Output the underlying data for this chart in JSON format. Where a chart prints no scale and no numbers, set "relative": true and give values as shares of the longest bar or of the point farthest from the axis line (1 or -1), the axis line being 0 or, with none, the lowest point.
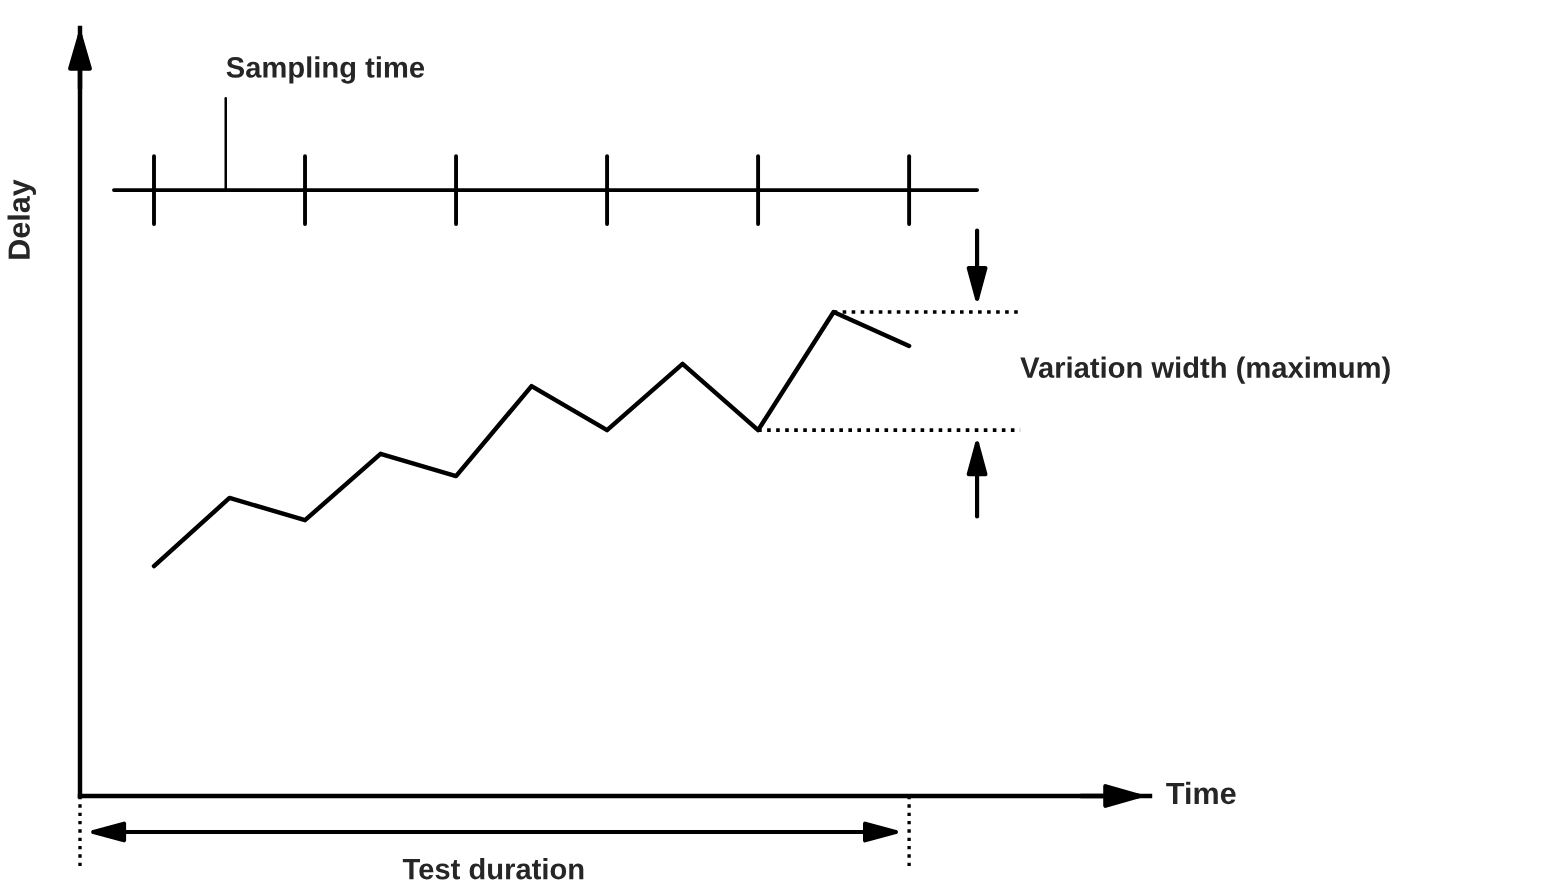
{
  "chart_data": {
    "type": "line",
    "relative": true,
    "ylabel": "Delay",
    "categories": [
      null,
      null,
      null,
      null,
      null,
      null,
      null,
      null,
      null,
      null,
      null
    ],
    "series": [
      {
        "color": "#000000",
        "values": [
          0.475,
          0.616,
          0.57,
          0.707,
          0.661,
          0.847,
          0.756,
          0.893,
          0.756,
          1,
          0.93
        ]
      }
    ],
    "line_style": "solid",
    "marker": "none",
    "annotations": [
      "Sampling time",
      "Variation width (maximum)",
      "Test duration",
      "Time"
    ]
  }
}
